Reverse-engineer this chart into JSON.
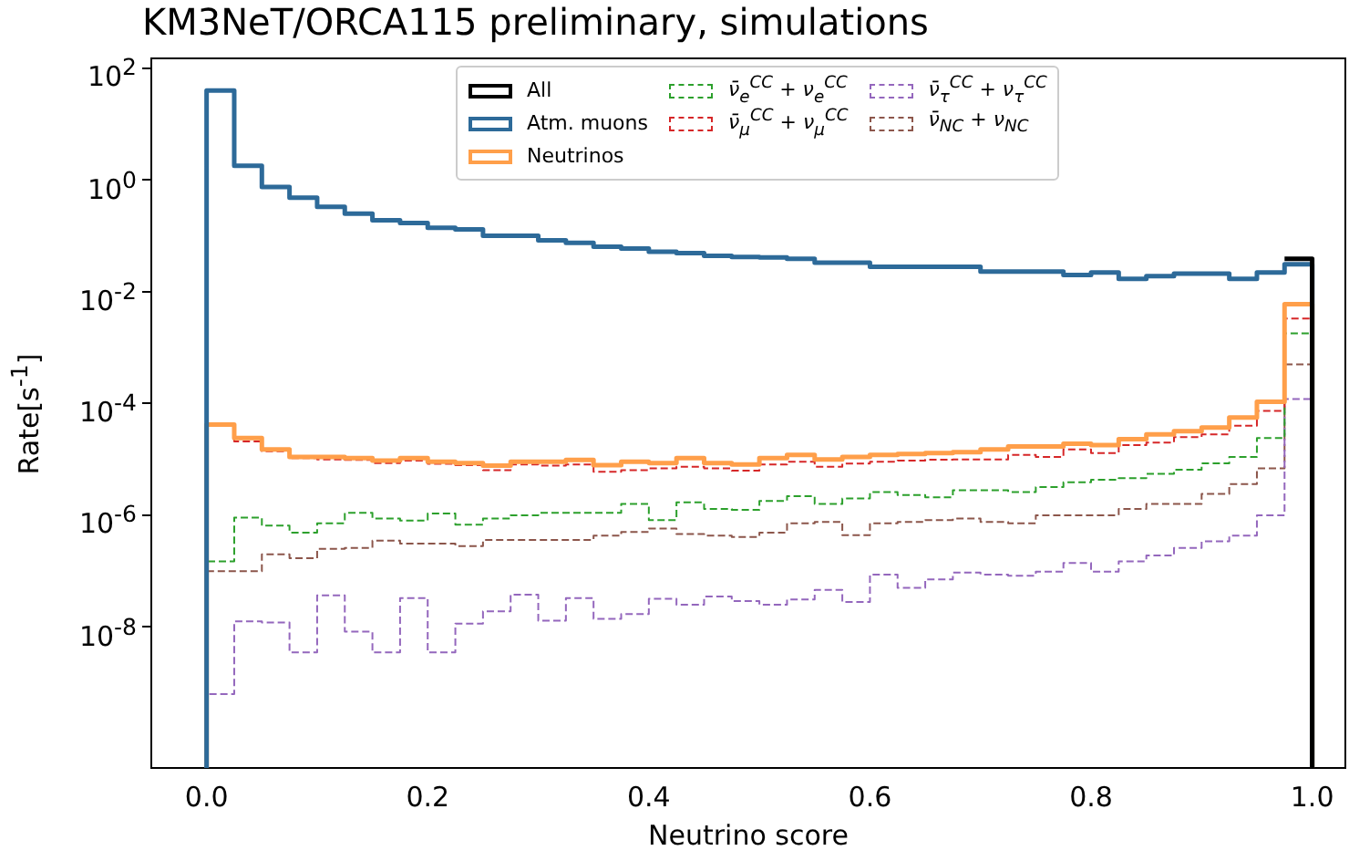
{
  "chart_data": {
    "type": "histogram",
    "title": "KM3NeT/ORCA115 preliminary, simulations",
    "xlabel": "Neutrino score",
    "ylabel": "Rate[s$^{-1}$]",
    "log": "y",
    "grid": false,
    "legend": "top",
    "xlim": [
      -0.05,
      1.03
    ],
    "xticks": [
      {
        "value": 0,
        "label": "0.0"
      },
      {
        "value": 0.2,
        "label": "0.2"
      },
      {
        "value": 0.4,
        "label": "0.4"
      },
      {
        "value": 0.6,
        "label": "0.6"
      },
      {
        "value": 0.8,
        "label": "0.8"
      },
      {
        "value": 1,
        "label": "1.0"
      }
    ],
    "ylim": [
      3e-11,
      150
    ],
    "yticks": [
      {
        "value": 1e-08,
        "label": "10$^{-8}$"
      },
      {
        "value": 1e-06,
        "label": "10$^{-6}$"
      },
      {
        "value": 0.0001,
        "label": "10$^{-4}$"
      },
      {
        "value": 0.01,
        "label": "10$^{-2}$"
      },
      {
        "value": 1,
        "label": "10$^{0}$"
      },
      {
        "value": 100,
        "label": "10$^{2}$"
      }
    ],
    "bins": [
      0,
      0.025,
      0.05,
      0.075,
      0.1,
      0.125,
      0.15,
      0.175,
      0.2,
      0.225,
      0.25,
      0.275,
      0.3,
      0.325,
      0.35,
      0.375,
      0.4,
      0.425,
      0.45,
      0.475,
      0.5,
      0.525,
      0.55,
      0.575,
      0.6,
      0.625,
      0.65,
      0.675,
      0.7,
      0.725,
      0.75,
      0.775,
      0.8,
      0.825,
      0.85,
      0.875,
      0.9,
      0.925,
      0.95,
      0.975,
      1
    ],
    "series": [
      {
        "name": "All",
        "color": "#000000",
        "line_style": "solid",
        "bins": [
          0.975,
          1
        ],
        "values": [
          0.039
        ]
      },
      {
        "name": "Atm. muons",
        "color": "#2d6a99",
        "line_style": "solid",
        "values": [
          40,
          1.8,
          0.75,
          0.48,
          0.33,
          0.25,
          0.19,
          0.17,
          0.14,
          0.13,
          0.1,
          0.1,
          0.083,
          0.075,
          0.064,
          0.059,
          0.052,
          0.049,
          0.044,
          0.042,
          0.041,
          0.039,
          0.033,
          0.033,
          0.028,
          0.028,
          0.028,
          0.028,
          0.023,
          0.023,
          0.023,
          0.02,
          0.022,
          0.017,
          0.019,
          0.021,
          0.021,
          0.017,
          0.022,
          0.031
        ]
      },
      {
        "name": "Neutrinos",
        "color": "#ff9f4a",
        "line_style": "solid",
        "values": [
          4.2e-05,
          2.4e-05,
          1.5e-05,
          1.1e-05,
          1.1e-05,
          1.05e-05,
          9.5e-06,
          1.05e-05,
          9.1e-06,
          8.6e-06,
          7.7e-06,
          9.1e-06,
          9.1e-06,
          9.8e-06,
          7.9e-06,
          9.1e-06,
          8.6e-06,
          1.05e-05,
          8.6e-06,
          8.1e-06,
          1.05e-05,
          1.2e-05,
          1e-05,
          1.1e-05,
          1.2e-05,
          1.25e-05,
          1.3e-05,
          1.35e-05,
          1.5e-05,
          1.7e-05,
          1.7e-05,
          1.9e-05,
          1.8e-05,
          2.3e-05,
          2.8e-05,
          3.2e-05,
          3.7e-05,
          5.6e-05,
          0.000107,
          0.006
        ]
      },
      {
        "name": "ν̄$_{e}$$^{CC}$ + ν$_{e}$$^{CC}$",
        "color": "#2ca02c",
        "line_style": "dashed",
        "values": [
          1.5e-07,
          9.1e-07,
          6.5e-07,
          4.9e-07,
          7.2e-07,
          1.1e-06,
          8.7e-07,
          8e-07,
          1.07e-06,
          6.8e-07,
          8.7e-07,
          1e-06,
          1.1e-06,
          1.1e-06,
          1.1e-06,
          1.6e-06,
          8.2e-07,
          1.7e-06,
          1.3e-06,
          1.25e-06,
          1.8e-06,
          2.2e-06,
          1.6e-06,
          2e-06,
          2.6e-06,
          2.3e-06,
          2.1e-06,
          2.8e-06,
          2.8e-06,
          2.6e-06,
          3.2e-06,
          3.9e-06,
          4.3e-06,
          4.6e-06,
          5.5e-06,
          6.5e-06,
          8.5e-06,
          1.1e-05,
          2.4e-05,
          0.0018
        ]
      },
      {
        "name": "ν̄$_{μ}$$^{CC}$ + ν$_{μ}$$^{CC}$",
        "color": "#d62728",
        "line_style": "dashed",
        "values": [
          4e-05,
          2.1e-05,
          1.4e-05,
          1.05e-05,
          1e-05,
          9.8e-06,
          8.6e-06,
          9.5e-06,
          8.3e-06,
          7.9e-06,
          6.4e-06,
          8.1e-06,
          7.7e-06,
          8.1e-06,
          6e-06,
          6.4e-06,
          6.9e-06,
          7.4e-06,
          6.9e-06,
          6.3e-06,
          8.1e-06,
          9.1e-06,
          7.4e-06,
          8.4e-06,
          9.1e-06,
          9.5e-06,
          9.9e-06,
          1e-05,
          1e-05,
          1.2e-05,
          1.1e-05,
          1.5e-05,
          1.3e-05,
          1.8e-05,
          2e-05,
          2.5e-05,
          2.8e-05,
          4e-05,
          7.4e-05,
          0.0033
        ]
      },
      {
        "name": "ν̄$_{τ}$$^{CC}$ + ν$_{τ}$$^{CC}$",
        "color": "#9467bd",
        "line_style": "dashed",
        "values": [
          6.3e-10,
          1.26e-08,
          1.2e-08,
          3.5e-09,
          3.7e-08,
          8.3e-09,
          3.5e-09,
          3.3e-08,
          3.5e-09,
          1.15e-08,
          1.9e-08,
          3.8e-08,
          1.3e-08,
          3.3e-08,
          1.4e-08,
          1.7e-08,
          3.2e-08,
          2.5e-08,
          3.5e-08,
          2.9e-08,
          2.5e-08,
          3.1e-08,
          4.6e-08,
          2.8e-08,
          8.7e-08,
          5e-08,
          7.1e-08,
          9.4e-08,
          8.7e-08,
          8.3e-08,
          9.8e-08,
          1.4e-07,
          9.8e-08,
          1.5e-07,
          1.9e-07,
          2.6e-07,
          3.4e-07,
          4.3e-07,
          1e-06,
          0.00012
        ]
      },
      {
        "name": "ν̄$_{NC}$ + ν$_{NC}$",
        "color": "#8c564b",
        "line_style": "dashed",
        "values": [
          1e-07,
          1e-07,
          2e-07,
          1.7e-07,
          2.5e-07,
          2.6e-07,
          3.5e-07,
          3.1e-07,
          3.1e-07,
          2.8e-07,
          3.6e-07,
          3.6e-07,
          3.6e-07,
          3.6e-07,
          4.3e-07,
          5e-07,
          5.8e-07,
          4.6e-07,
          4.3e-07,
          4.1e-07,
          4.9e-07,
          7.2e-07,
          7.6e-07,
          4.4e-07,
          7.2e-07,
          7.6e-07,
          8.2e-07,
          8.7e-07,
          7.6e-07,
          7.2e-07,
          1e-06,
          1e-06,
          1e-06,
          1.3e-06,
          1.6e-06,
          1.6e-06,
          2.4e-06,
          3.6e-06,
          6.9e-06,
          0.0005
        ]
      }
    ]
  }
}
